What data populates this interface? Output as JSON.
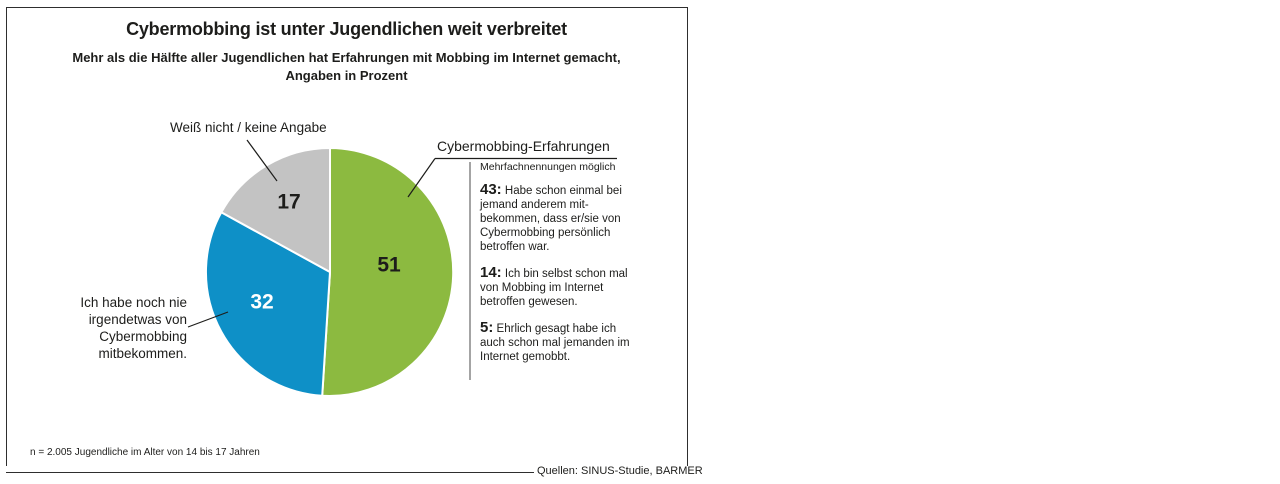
{
  "header": {
    "title": "Cybermobbing ist unter Jugendlichen weit verbreitet",
    "subtitle_line1": "Mehr als die Hälfte aller Jugendlichen hat Erfahrungen mit Mobbing im Internet gemacht,",
    "subtitle_line2": "Angaben in Prozent"
  },
  "chart_data": {
    "type": "pie",
    "title": "Cybermobbing ist unter Jugendlichen weit verbreitet",
    "subtitle": "Mehr als die Hälfte aller Jugendlichen hat Erfahrungen mit Mobbing im Internet gemacht, Angaben in Prozent",
    "unit": "Prozent",
    "start": "12 Uhr, im Uhrzeigersinn",
    "slices": [
      {
        "label": "Cybermobbing-Erfahrungen",
        "value": 51,
        "color": "#8cba40"
      },
      {
        "label": "Ich habe noch nie irgendetwas von Cybermobbing mitbekommen.",
        "value": 32,
        "color": "#0e90c7"
      },
      {
        "label": "Weiß nicht / keine Angabe",
        "value": 17,
        "color": "#c3c3c3"
      }
    ],
    "value_label_colors": [
      "#1d1d1b",
      "#ffffff",
      "#1d1d1b"
    ]
  },
  "breakdown": {
    "note": "Mehrfachnennungen möglich",
    "items": [
      {
        "number": 43,
        "display": "43:",
        "text": "Habe schon einmal bei jemand anderem mit-bekommen, dass er/sie von Cybermobbing persönlich betroffen war."
      },
      {
        "number": 14,
        "display": "14:",
        "text": "Ich bin selbst schon mal von Mobbing im Internet betroffen gewesen."
      },
      {
        "number": 5,
        "display": "5:",
        "text": "Ehrlich gesagt habe ich auch schon mal jemanden im Internet gemobbt."
      }
    ]
  },
  "footer": {
    "footnote": "n = 2.005 Jugendliche im Alter von 14 bis 17 Jahren",
    "source": "Quellen: SINUS-Studie, BARMER"
  }
}
